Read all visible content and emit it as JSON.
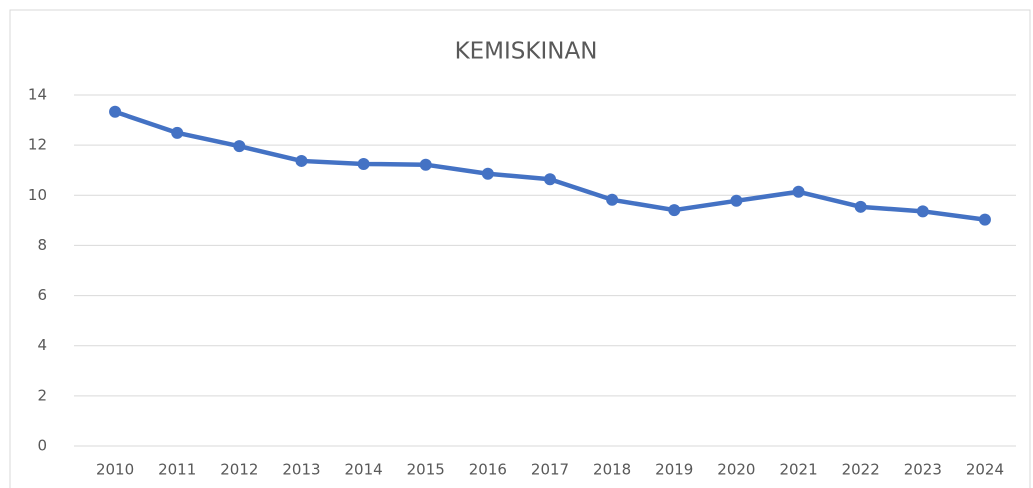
{
  "chart_data": {
    "type": "line",
    "title": "KEMISKINAN",
    "categories": [
      "2010",
      "2011",
      "2012",
      "2013",
      "2014",
      "2015",
      "2016",
      "2017",
      "2018",
      "2019",
      "2020",
      "2021",
      "2022",
      "2023",
      "2024"
    ],
    "values": [
      13.33,
      12.49,
      11.96,
      11.37,
      11.25,
      11.22,
      10.86,
      10.64,
      9.82,
      9.41,
      9.78,
      10.14,
      9.54,
      9.36,
      9.03
    ],
    "color": "#4472c4",
    "ylim": [
      0,
      14
    ],
    "yticks": [
      0,
      2,
      4,
      6,
      8,
      10,
      12,
      14
    ],
    "grid": true
  }
}
